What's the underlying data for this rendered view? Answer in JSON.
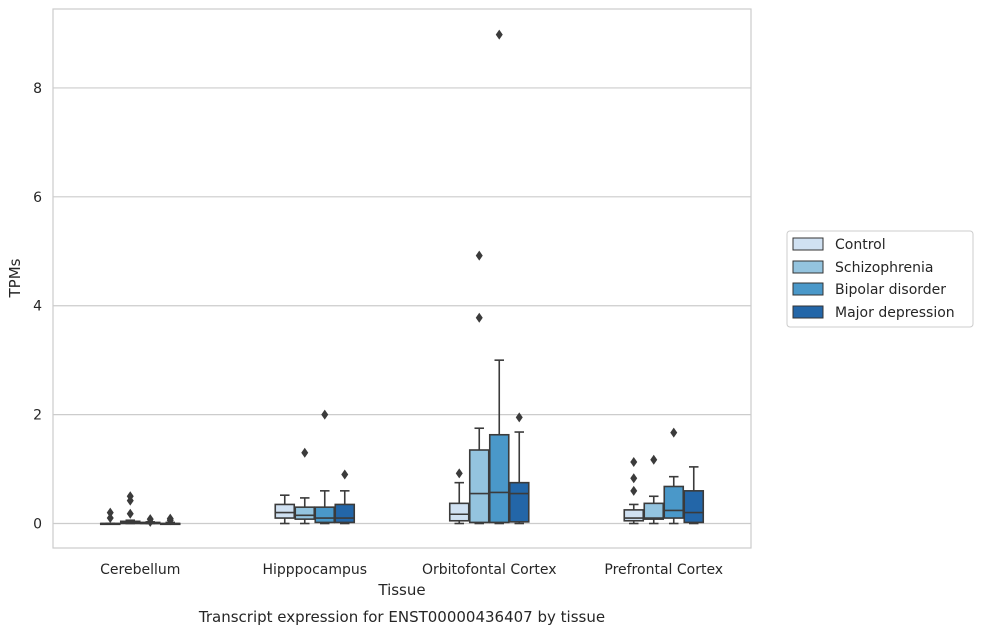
{
  "caption": "Transcript expression for ENST00000436407 by tissue",
  "chart_data": {
    "type": "box",
    "xlabel": "Tissue",
    "ylabel": "TPMs",
    "categories": [
      "Cerebellum",
      "Hipppocampus",
      "Orbitofontal Cortex",
      "Prefrontal Cortex"
    ],
    "ylim": [
      -0.45,
      9.45
    ],
    "yticks": [
      0,
      2,
      4,
      6,
      8
    ],
    "grid": "horizontal",
    "legend_position": "right",
    "series": [
      {
        "name": "Control",
        "color": "#d0e1f2",
        "boxes": [
          {
            "q1": 0,
            "median": 0,
            "q3": 0,
            "whisker_low": 0,
            "whisker_high": 0,
            "outliers": [
              0.1,
              0.2
            ]
          },
          {
            "q1": 0.1,
            "median": 0.2,
            "q3": 0.35,
            "whisker_low": 0,
            "whisker_high": 0.52,
            "outliers": []
          },
          {
            "q1": 0.05,
            "median": 0.17,
            "q3": 0.37,
            "whisker_low": 0,
            "whisker_high": 0.75,
            "outliers": [
              0.92
            ]
          },
          {
            "q1": 0.05,
            "median": 0.1,
            "q3": 0.25,
            "whisker_low": 0,
            "whisker_high": 0.35,
            "outliers": [
              0.6,
              0.83,
              1.13
            ]
          }
        ]
      },
      {
        "name": "Schizophrenia",
        "color": "#94c4df",
        "boxes": [
          {
            "q1": 0,
            "median": 0.02,
            "q3": 0.04,
            "whisker_low": 0,
            "whisker_high": 0.06,
            "outliers": [
              0.18,
              0.42,
              0.5
            ]
          },
          {
            "q1": 0.08,
            "median": 0.15,
            "q3": 0.3,
            "whisker_low": 0,
            "whisker_high": 0.47,
            "outliers": [
              1.3
            ]
          },
          {
            "q1": 0.02,
            "median": 0.55,
            "q3": 1.35,
            "whisker_low": 0,
            "whisker_high": 1.75,
            "outliers": [
              3.78,
              4.92
            ]
          },
          {
            "q1": 0.08,
            "median": 0.1,
            "q3": 0.37,
            "whisker_low": 0,
            "whisker_high": 0.5,
            "outliers": [
              1.17
            ]
          }
        ]
      },
      {
        "name": "Bipolar disorder",
        "color": "#4a98c9",
        "boxes": [
          {
            "q1": 0,
            "median": 0,
            "q3": 0.02,
            "whisker_low": 0,
            "whisker_high": 0.03,
            "outliers": [
              0.03,
              0.08
            ]
          },
          {
            "q1": 0.02,
            "median": 0.1,
            "q3": 0.3,
            "whisker_low": 0,
            "whisker_high": 0.6,
            "outliers": [
              2.0
            ]
          },
          {
            "q1": 0.02,
            "median": 0.57,
            "q3": 1.63,
            "whisker_low": 0,
            "whisker_high": 3.0,
            "outliers": [
              8.98
            ]
          },
          {
            "q1": 0.1,
            "median": 0.24,
            "q3": 0.68,
            "whisker_low": 0,
            "whisker_high": 0.86,
            "outliers": [
              1.67
            ]
          }
        ]
      },
      {
        "name": "Major depression",
        "color": "#2366a8",
        "boxes": [
          {
            "q1": 0,
            "median": 0,
            "q3": 0,
            "whisker_low": 0,
            "whisker_high": 0.02,
            "outliers": [
              0.06,
              0.09
            ]
          },
          {
            "q1": 0.02,
            "median": 0.1,
            "q3": 0.35,
            "whisker_low": 0,
            "whisker_high": 0.6,
            "outliers": [
              0.9
            ]
          },
          {
            "q1": 0.03,
            "median": 0.55,
            "q3": 0.75,
            "whisker_low": 0,
            "whisker_high": 1.68,
            "outliers": [
              1.95
            ]
          },
          {
            "q1": 0.02,
            "median": 0.2,
            "q3": 0.6,
            "whisker_low": 0,
            "whisker_high": 1.04,
            "outliers": []
          }
        ]
      }
    ]
  }
}
